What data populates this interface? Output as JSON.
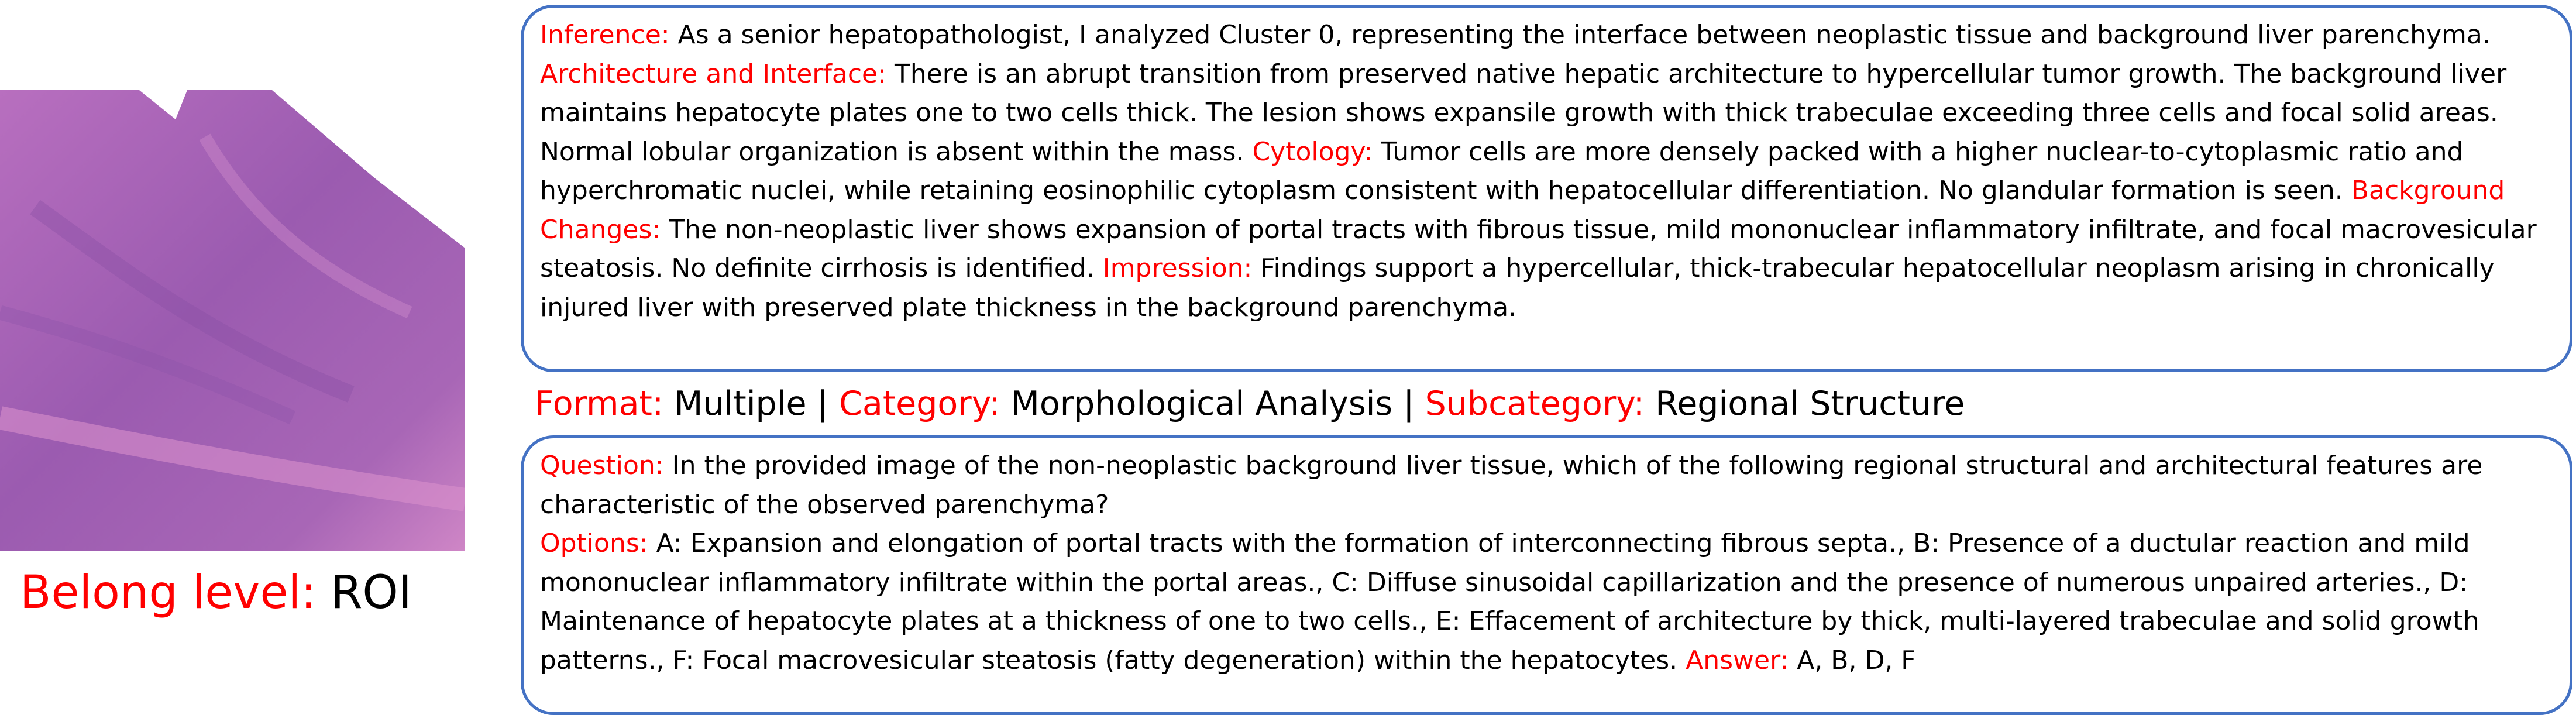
{
  "image_label": {
    "label": "Belong level:",
    "value": "ROI"
  },
  "inference": [
    {
      "label": "Inference:",
      "text": "As a senior hepatopathologist, I analyzed Cluster 0, representing the interface between neoplastic tissue and background liver parenchyma."
    },
    {
      "label": "Architecture and Interface:",
      "text": "There is an abrupt transition from preserved native hepatic architecture to hypercellular tumor growth. The background liver maintains hepatocyte plates one to two cells thick. The lesion shows expansile growth with thick trabeculae exceeding three cells and focal solid areas. Normal lobular organization is absent within the mass."
    },
    {
      "label": "Cytology:",
      "text": "Tumor cells are more densely packed with a higher nuclear-to-cytoplasmic ratio and hyperchromatic nuclei, while retaining eosinophilic cytoplasm consistent with hepatocellular differentiation. No glandular formation is seen."
    },
    {
      "label": "Background Changes:",
      "text": "The non-neoplastic liver shows expansion of portal tracts with fibrous tissue, mild mononuclear inflammatory infiltrate, and focal macrovesicular steatosis. No definite cirrhosis is identified."
    },
    {
      "label": "Impression:",
      "text": "Findings support a hypercellular, thick-trabecular hepatocellular neoplasm arising in chronically injured liver with preserved plate thickness in the background parenchyma."
    }
  ],
  "meta": {
    "separator": "|",
    "items": [
      {
        "label": "Format:",
        "value": "Multiple"
      },
      {
        "label": "Category:",
        "value": "Morphological Analysis"
      },
      {
        "label": "Subcategory:",
        "value": "Regional Structure"
      }
    ]
  },
  "question": {
    "label": "Question:",
    "text": "In the provided image of the non-neoplastic background liver tissue, which of the following regional structural and architectural features are characteristic of the observed parenchyma?"
  },
  "options": {
    "label": "Options:",
    "text": "A: Expansion and elongation of portal tracts with the formation of interconnecting fibrous septa., B: Presence of a ductular reaction and mild mononuclear inflammatory infiltrate within the portal areas., C: Diffuse sinusoidal capillarization and the presence of numerous unpaired arteries., D: Maintenance of hepatocyte plates at a thickness of one to two cells., E: Effacement of architecture by thick, multi-layered trabeculae and solid growth patterns., F: Focal macrovesicular steatosis (fatty degeneration) within the hepatocytes."
  },
  "answer": {
    "label": "Answer:",
    "text": "A, B, D, F"
  }
}
